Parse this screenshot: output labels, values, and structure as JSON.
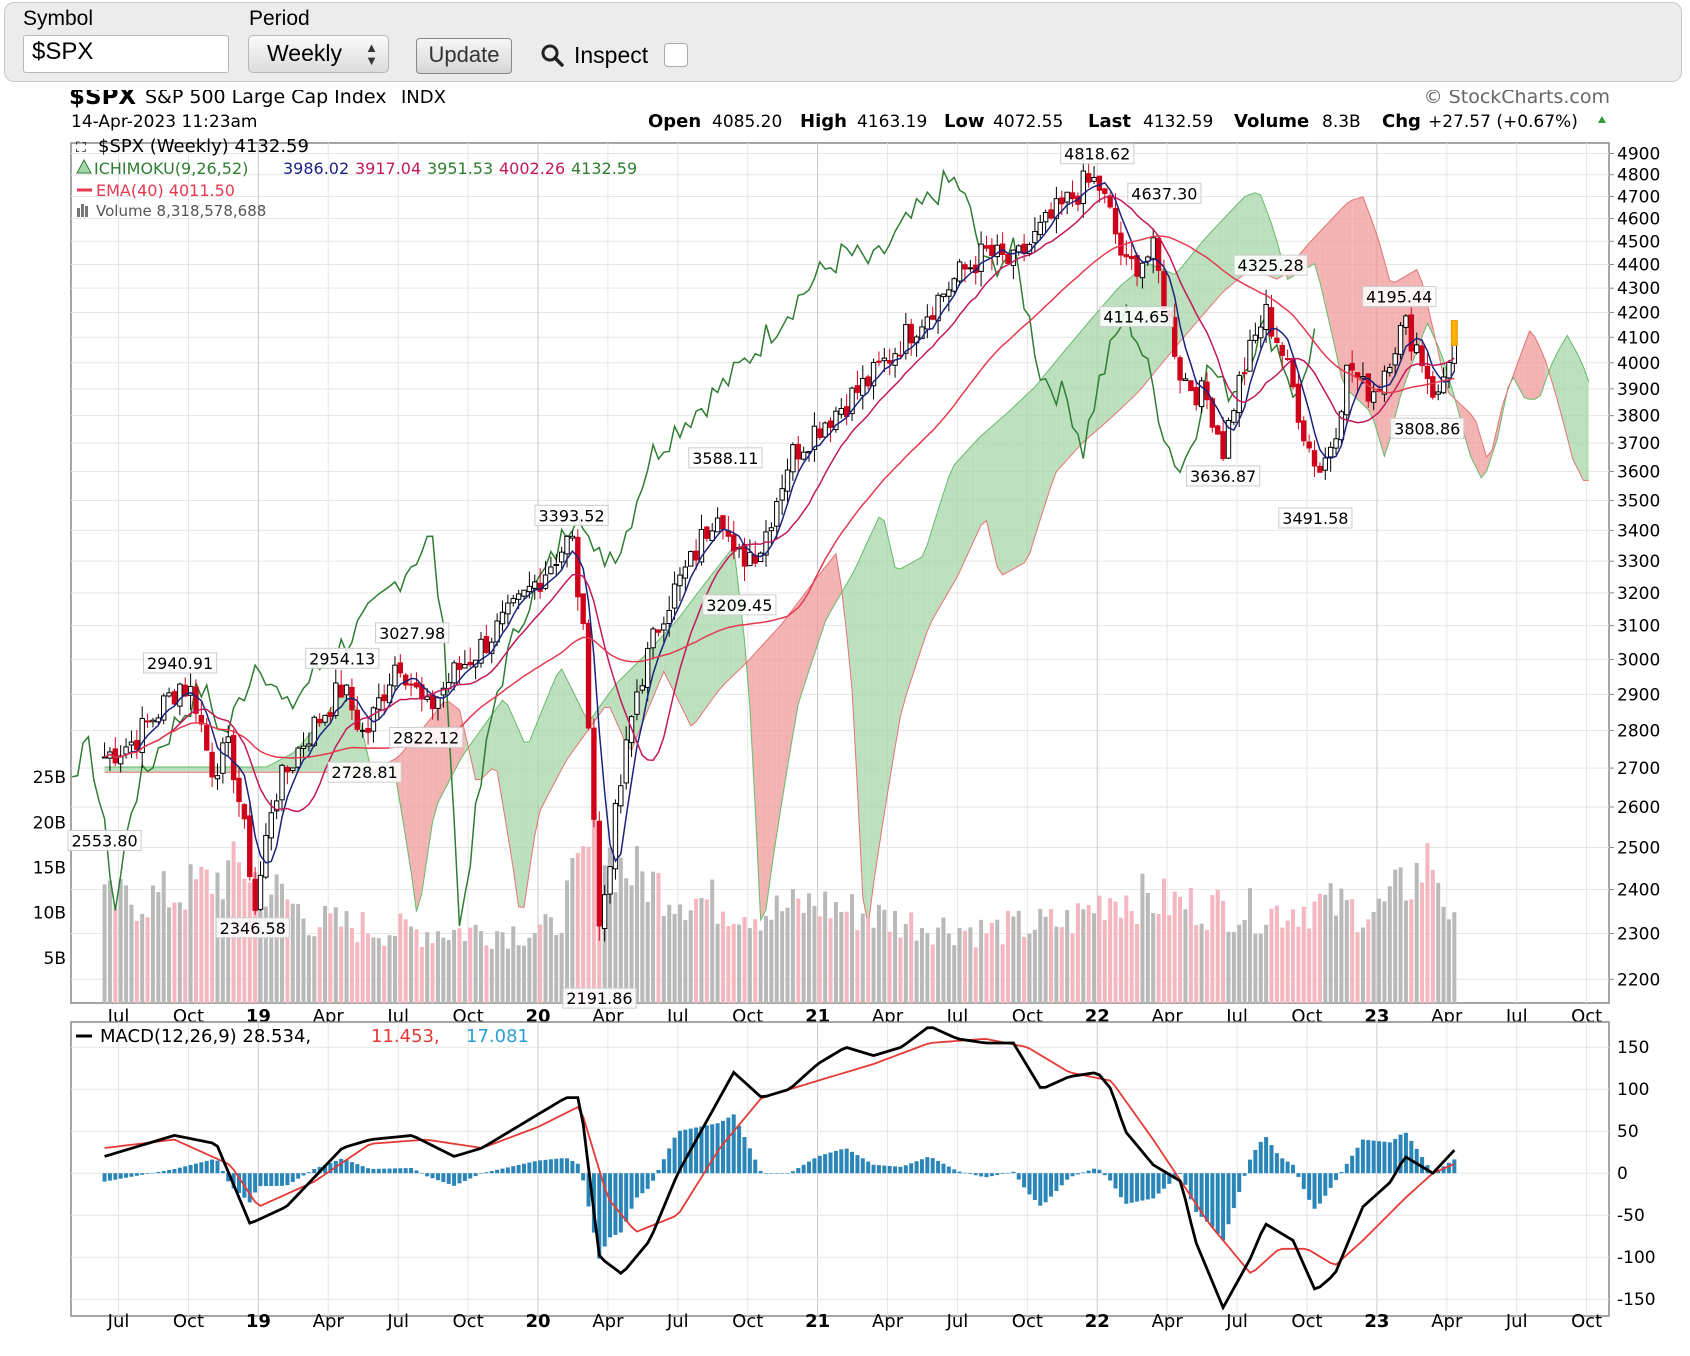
{
  "toolbar": {
    "symbol_label": "Symbol",
    "symbol_value": "$SPX",
    "period_label": "Period",
    "period_value": "Weekly",
    "update_label": "Update",
    "inspect_label": "Inspect"
  },
  "header": {
    "symbol": "$SPX",
    "name": "S&P 500 Large Cap Index",
    "exchange": "INDX",
    "watermark": "© StockCharts.com",
    "date": "14-Apr-2023 11:23am",
    "open_label": "Open",
    "open": "4085.20",
    "high_label": "High",
    "high": "4163.19",
    "low_label": "Low",
    "low": "4072.55",
    "last_label": "Last",
    "last": "4132.59",
    "volume_label": "Volume",
    "volume": "8.3B",
    "chg_label": "Chg",
    "chg": "+27.57 (+0.67%)"
  },
  "legend": {
    "price": "$SPX (Weekly) 4132.59",
    "ichimoku_name": "ICHIMOKU(9,26,52)",
    "ichimoku_values": [
      "3986.02",
      "3917.04",
      "3951.53",
      "4002.26",
      "4132.59"
    ],
    "ema": "EMA(40) 4011.50",
    "volume": "Volume 8,318,578,688",
    "macd_name": "MACD(12,26,9) 28.534,",
    "macd_signal": "11.453,",
    "macd_hist": "17.081"
  },
  "colors": {
    "up": "#000000",
    "down": "#d0021b",
    "tenkan": "#1a237e",
    "kijun": "#c2185b",
    "chikou": "#2e7d32",
    "cloud_green": "#a5d6a7",
    "cloud_red": "#ef9a9a",
    "vol_up": "#b9b9b9",
    "vol_down": "#f4b6bf",
    "ema": "#e53950",
    "macd": "#000000",
    "signal": "#e53935",
    "hist": "#2a86b8"
  },
  "chart_data": [
    {
      "type": "candlestick",
      "title": "$SPX S&P 500 Large Cap Index INDX",
      "y_scale": "log",
      "ylim": [
        2150,
        4950
      ],
      "y_ticks": [
        2200,
        2300,
        2400,
        2500,
        2600,
        2700,
        2800,
        2900,
        3000,
        3100,
        3200,
        3300,
        3400,
        3500,
        3600,
        3700,
        3800,
        3900,
        4000,
        4100,
        4200,
        4300,
        4400,
        4500,
        4600,
        4700,
        4800,
        4900
      ],
      "x_ticks": [
        "Jul",
        "Oct",
        "19",
        "Apr",
        "Jul",
        "Oct",
        "20",
        "Apr",
        "Jul",
        "Oct",
        "21",
        "Apr",
        "Jul",
        "Oct",
        "22",
        "Apr",
        "Jul",
        "Oct",
        "23",
        "Apr",
        "Jul",
        "Oct"
      ],
      "price_path": [
        [
          2018.45,
          2730
        ],
        [
          2018.55,
          2770
        ],
        [
          2018.65,
          2860
        ],
        [
          2018.72,
          2930
        ],
        [
          2018.77,
          2900
        ],
        [
          2018.83,
          2700
        ],
        [
          2018.9,
          2750
        ],
        [
          2018.97,
          2450
        ],
        [
          2018.99,
          2350
        ],
        [
          2019.05,
          2620
        ],
        [
          2019.15,
          2760
        ],
        [
          2019.3,
          2920
        ],
        [
          2019.38,
          2780
        ],
        [
          2019.5,
          3010
        ],
        [
          2019.6,
          2850
        ],
        [
          2019.7,
          2960
        ],
        [
          2019.8,
          3040
        ],
        [
          2019.92,
          3150
        ],
        [
          2020.05,
          3300
        ],
        [
          2020.12,
          3380
        ],
        [
          2020.17,
          3000
        ],
        [
          2020.22,
          2300
        ],
        [
          2020.25,
          2450
        ],
        [
          2020.35,
          2900
        ],
        [
          2020.45,
          3150
        ],
        [
          2020.55,
          3300
        ],
        [
          2020.65,
          3500
        ],
        [
          2020.7,
          3300
        ],
        [
          2020.8,
          3350
        ],
        [
          2020.9,
          3650
        ],
        [
          2021.0,
          3760
        ],
        [
          2021.1,
          3850
        ],
        [
          2021.2,
          3950
        ],
        [
          2021.35,
          4150
        ],
        [
          2021.5,
          4350
        ],
        [
          2021.6,
          4450
        ],
        [
          2021.7,
          4400
        ],
        [
          2021.8,
          4550
        ],
        [
          2021.95,
          4750
        ],
        [
          2022.0,
          4770
        ],
        [
          2022.05,
          4600
        ],
        [
          2022.1,
          4380
        ],
        [
          2022.2,
          4450
        ],
        [
          2022.25,
          4200
        ],
        [
          2022.3,
          3950
        ],
        [
          2022.4,
          3850
        ],
        [
          2022.45,
          3680
        ],
        [
          2022.5,
          3900
        ],
        [
          2022.6,
          4200
        ],
        [
          2022.65,
          4080
        ],
        [
          2022.7,
          3900
        ],
        [
          2022.75,
          3700
        ],
        [
          2022.8,
          3600
        ],
        [
          2022.85,
          3750
        ],
        [
          2022.9,
          4000
        ],
        [
          2022.95,
          3900
        ],
        [
          2023.0,
          3900
        ],
        [
          2023.05,
          4050
        ],
        [
          2023.1,
          4150
        ],
        [
          2023.15,
          4050
        ],
        [
          2023.2,
          3900
        ],
        [
          2023.22,
          3860
        ],
        [
          2023.25,
          4000
        ],
        [
          2023.28,
          4132.59
        ]
      ],
      "labels": [
        {
          "text": "2940.91",
          "x": 2018.72,
          "y": 2940.91
        },
        {
          "text": "2346.58",
          "x": 2018.98,
          "y": 2346.58
        },
        {
          "text": "2954.13",
          "x": 2019.3,
          "y": 2954.13
        },
        {
          "text": "2728.81",
          "x": 2019.38,
          "y": 2728.81
        },
        {
          "text": "3027.98",
          "x": 2019.55,
          "y": 3027.98
        },
        {
          "text": "2822.12",
          "x": 2019.6,
          "y": 2822.12
        },
        {
          "text": "3393.52",
          "x": 2020.12,
          "y": 3393.52
        },
        {
          "text": "2191.86",
          "x": 2020.22,
          "y": 2191.86
        },
        {
          "text": "3588.11",
          "x": 2020.67,
          "y": 3588.11
        },
        {
          "text": "3209.45",
          "x": 2020.72,
          "y": 3209.45
        },
        {
          "text": "4818.62",
          "x": 2022.0,
          "y": 4818.62
        },
        {
          "text": "4637.30",
          "x": 2022.24,
          "y": 4637.3
        },
        {
          "text": "4114.65",
          "x": 2022.14,
          "y": 4114.65
        },
        {
          "text": "4325.28",
          "x": 2022.62,
          "y": 4325.28
        },
        {
          "text": "3636.87",
          "x": 2022.45,
          "y": 3636.87
        },
        {
          "text": "3491.58",
          "x": 2022.78,
          "y": 3491.58
        },
        {
          "text": "4195.44",
          "x": 2023.08,
          "y": 4195.44
        },
        {
          "text": "3808.86",
          "x": 2023.18,
          "y": 3808.86
        },
        {
          "text": "2553.80",
          "x": 2018.45,
          "y": 2553.8
        }
      ]
    },
    {
      "type": "bar",
      "title": "Volume",
      "y_ticks": [
        "5B",
        "10B",
        "15B",
        "20B",
        "25B"
      ],
      "values_billions_path": [
        [
          2018.45,
          11
        ],
        [
          2018.7,
          12
        ],
        [
          2018.95,
          15
        ],
        [
          2019.2,
          9
        ],
        [
          2019.5,
          8
        ],
        [
          2019.8,
          8
        ],
        [
          2020.05,
          8
        ],
        [
          2020.2,
          18
        ],
        [
          2020.3,
          15
        ],
        [
          2020.5,
          12
        ],
        [
          2020.8,
          10
        ],
        [
          2021.0,
          11
        ],
        [
          2021.3,
          9
        ],
        [
          2021.6,
          8
        ],
        [
          2021.9,
          9
        ],
        [
          2022.05,
          12
        ],
        [
          2022.3,
          11
        ],
        [
          2022.6,
          10
        ],
        [
          2022.8,
          11
        ],
        [
          2023.0,
          10
        ],
        [
          2023.2,
          16
        ],
        [
          2023.28,
          8
        ]
      ]
    },
    {
      "type": "line",
      "title": "MACD(12,26,9)",
      "ylim": [
        -170,
        180
      ],
      "y_ticks": [
        150,
        100,
        50,
        0,
        -50,
        -100,
        -150
      ],
      "macd_path": [
        [
          2018.45,
          20
        ],
        [
          2018.7,
          45
        ],
        [
          2018.85,
          35
        ],
        [
          2018.97,
          -60
        ],
        [
          2019.1,
          -40
        ],
        [
          2019.3,
          30
        ],
        [
          2019.4,
          40
        ],
        [
          2019.55,
          45
        ],
        [
          2019.7,
          20
        ],
        [
          2019.8,
          30
        ],
        [
          2019.95,
          60
        ],
        [
          2020.1,
          90
        ],
        [
          2020.15,
          90
        ],
        [
          2020.22,
          -100
        ],
        [
          2020.3,
          -120
        ],
        [
          2020.4,
          -80
        ],
        [
          2020.5,
          0
        ],
        [
          2020.6,
          60
        ],
        [
          2020.7,
          120
        ],
        [
          2020.8,
          90
        ],
        [
          2020.9,
          100
        ],
        [
          2021.0,
          130
        ],
        [
          2021.1,
          150
        ],
        [
          2021.2,
          140
        ],
        [
          2021.3,
          150
        ],
        [
          2021.4,
          175
        ],
        [
          2021.5,
          160
        ],
        [
          2021.6,
          155
        ],
        [
          2021.7,
          155
        ],
        [
          2021.8,
          100
        ],
        [
          2021.9,
          115
        ],
        [
          2022.0,
          120
        ],
        [
          2022.05,
          100
        ],
        [
          2022.1,
          50
        ],
        [
          2022.2,
          10
        ],
        [
          2022.3,
          -10
        ],
        [
          2022.35,
          -80
        ],
        [
          2022.45,
          -160
        ],
        [
          2022.55,
          -100
        ],
        [
          2022.6,
          -60
        ],
        [
          2022.7,
          -80
        ],
        [
          2022.78,
          -140
        ],
        [
          2022.85,
          -120
        ],
        [
          2022.95,
          -40
        ],
        [
          2023.05,
          -10
        ],
        [
          2023.1,
          20
        ],
        [
          2023.15,
          10
        ],
        [
          2023.2,
          0
        ],
        [
          2023.28,
          28.534
        ]
      ],
      "signal_path": [
        [
          2018.45,
          30
        ],
        [
          2018.7,
          40
        ],
        [
          2018.9,
          10
        ],
        [
          2019.0,
          -40
        ],
        [
          2019.2,
          -10
        ],
        [
          2019.4,
          35
        ],
        [
          2019.6,
          40
        ],
        [
          2019.8,
          30
        ],
        [
          2020.0,
          55
        ],
        [
          2020.15,
          80
        ],
        [
          2020.25,
          -30
        ],
        [
          2020.35,
          -70
        ],
        [
          2020.5,
          -50
        ],
        [
          2020.65,
          30
        ],
        [
          2020.8,
          90
        ],
        [
          2021.0,
          110
        ],
        [
          2021.2,
          130
        ],
        [
          2021.4,
          155
        ],
        [
          2021.6,
          160
        ],
        [
          2021.75,
          150
        ],
        [
          2021.9,
          120
        ],
        [
          2022.05,
          110
        ],
        [
          2022.2,
          40
        ],
        [
          2022.3,
          -10
        ],
        [
          2022.4,
          -60
        ],
        [
          2022.55,
          -120
        ],
        [
          2022.65,
          -90
        ],
        [
          2022.75,
          -90
        ],
        [
          2022.85,
          -110
        ],
        [
          2022.95,
          -80
        ],
        [
          2023.1,
          -30
        ],
        [
          2023.2,
          0
        ],
        [
          2023.28,
          11.453
        ]
      ],
      "hist_final": 17.081
    }
  ]
}
